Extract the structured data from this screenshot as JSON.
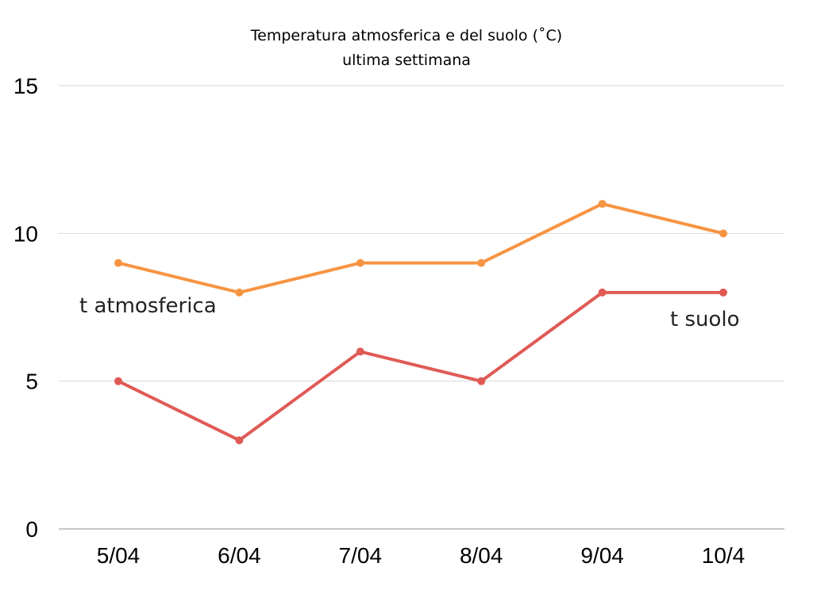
{
  "chart_data": {
    "type": "line",
    "title": "Temperatura atmosferica e del suolo (˚C)",
    "subtitle": "ultima settimana",
    "xlabel": "",
    "ylabel": "",
    "categories": [
      "5/04",
      "6/04",
      "7/04",
      "8/04",
      "9/04",
      "10/4"
    ],
    "ylim": [
      0,
      15
    ],
    "yticks": [
      "0",
      "5",
      "10",
      "15"
    ],
    "grid": true,
    "legend": "inline labels",
    "series": [
      {
        "name": "t atmosferica",
        "values": [
          9,
          8,
          9,
          9,
          11,
          10
        ],
        "color": "#f79443"
      },
      {
        "name": "t suolo",
        "values": [
          5,
          3,
          6,
          5,
          8,
          8
        ],
        "color": "#e05a55"
      }
    ]
  }
}
